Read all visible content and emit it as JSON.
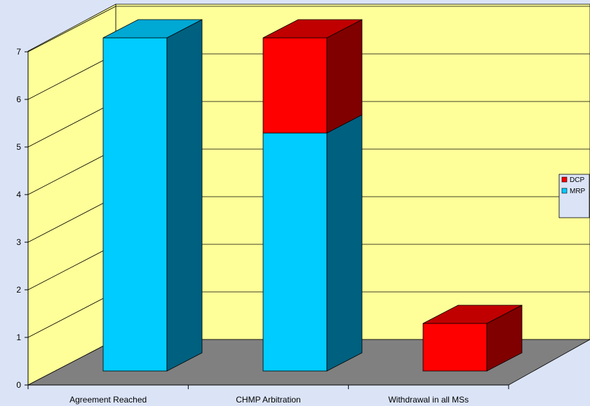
{
  "chart_data": {
    "type": "bar",
    "stacked": true,
    "three_d": true,
    "categories": [
      "Agreement Reached",
      "CHMP Arbitration",
      "Withdrawal in all MSs"
    ],
    "series": [
      {
        "name": "MRP",
        "values": [
          7,
          5,
          0
        ]
      },
      {
        "name": "DCP",
        "values": [
          0,
          2,
          1
        ]
      }
    ],
    "ylim": [
      0,
      7
    ],
    "yticks": [
      0,
      1,
      2,
      3,
      4,
      5,
      6,
      7
    ],
    "grid": true,
    "legend_position": "right",
    "legend_order": [
      "DCP",
      "MRP"
    ],
    "colors": {
      "MRP": {
        "front": "#00ccff",
        "side": "#006080",
        "top": "#00a8d4"
      },
      "DCP": {
        "front": "#ff0000",
        "side": "#800000",
        "top": "#c00000"
      },
      "back_wall": "#ffff99",
      "side_wall": "#ffff99",
      "floor": "#808080",
      "background": "#dbe4f7"
    }
  }
}
